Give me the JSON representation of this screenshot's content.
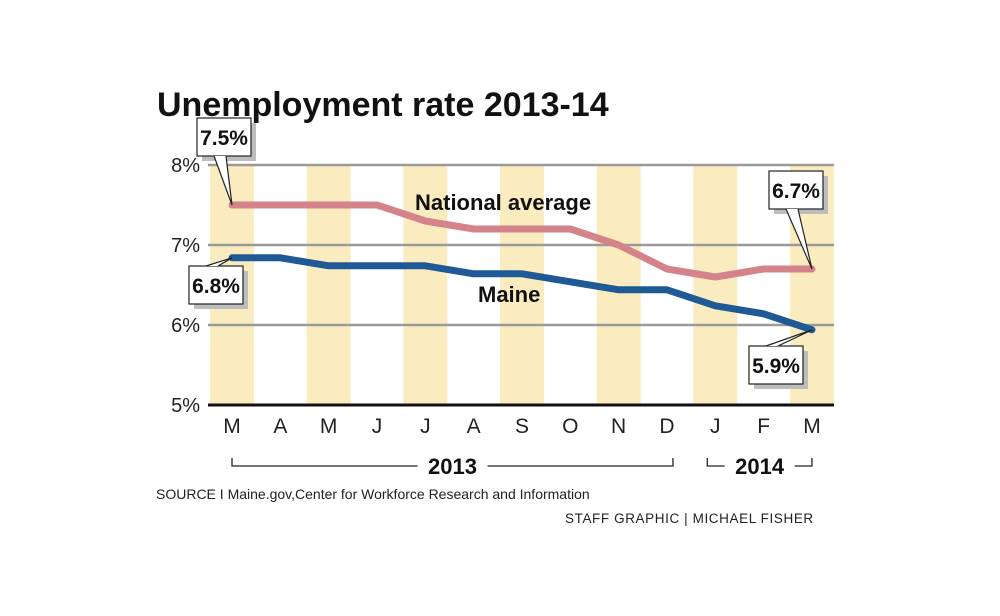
{
  "chart_data": {
    "type": "line",
    "title": "Unemployment rate 2013-14",
    "categories": [
      "M",
      "A",
      "M",
      "J",
      "J",
      "A",
      "S",
      "O",
      "N",
      "D",
      "J",
      "F",
      "M"
    ],
    "year_groups": [
      {
        "label": "2013",
        "from": 0,
        "to": 9
      },
      {
        "label": "2014",
        "from": 10,
        "to": 12
      }
    ],
    "yticks": [
      {
        "value": 5,
        "label": "5%"
      },
      {
        "value": 6,
        "label": "6%"
      },
      {
        "value": 7,
        "label": "7%"
      },
      {
        "value": 8,
        "label": "8%"
      }
    ],
    "ylim": [
      5,
      8
    ],
    "grid": true,
    "series": [
      {
        "name": "National average",
        "color": "#d4838a",
        "values": [
          7.5,
          7.5,
          7.5,
          7.5,
          7.3,
          7.2,
          7.2,
          7.2,
          7.0,
          6.7,
          6.6,
          6.7,
          6.7
        ],
        "callouts": [
          {
            "index": 0,
            "label": "7.5%"
          },
          {
            "index": 12,
            "label": "6.7%"
          }
        ]
      },
      {
        "name": "Maine",
        "color": "#1f5a96",
        "values": [
          6.84,
          6.84,
          6.74,
          6.74,
          6.74,
          6.64,
          6.64,
          6.54,
          6.44,
          6.44,
          6.24,
          6.14,
          5.94
        ],
        "callouts": [
          {
            "index": 0,
            "label": "6.8%"
          },
          {
            "index": 12,
            "label": "5.9%"
          }
        ]
      }
    ],
    "band_color": "#fbecc0"
  },
  "source": "SOURCE I Maine.gov,Center for Workforce Research and Information",
  "credit": "STAFF GRAPHIC | MICHAEL FISHER"
}
